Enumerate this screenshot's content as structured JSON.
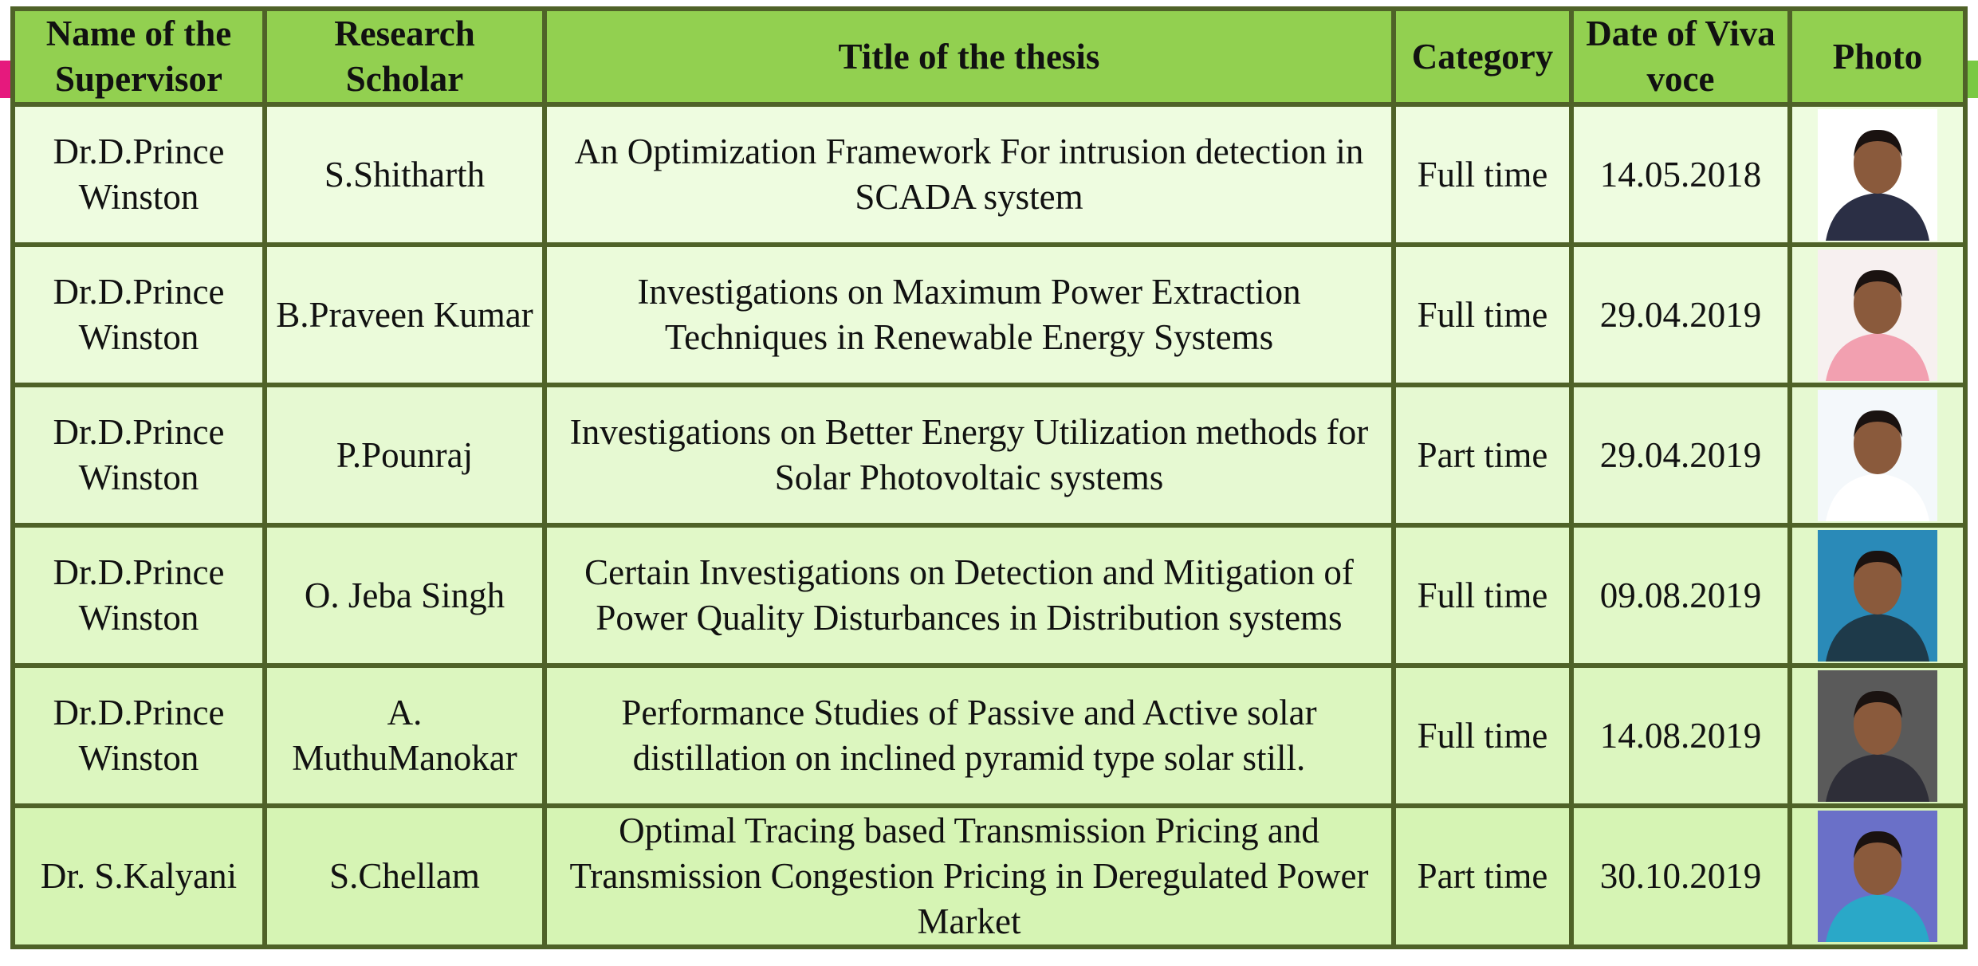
{
  "table": {
    "header": [
      "Name of the Supervisor",
      "Research Scholar",
      "Title of the thesis",
      "Category",
      "Date of Viva voce",
      "Photo"
    ],
    "rows": [
      [
        "Dr.D.Prince Winston",
        "S.Shitharth",
        "An Optimization Framework For intrusion detection in SCADA system",
        "Full time",
        "14.05.2018"
      ],
      [
        "Dr.D.Prince Winston",
        "B.Praveen Kumar",
        "Investigations on Maximum Power Extraction Techniques in Renewable Energy Systems",
        "Full time",
        "29.04.2019"
      ],
      [
        "Dr.D.Prince Winston",
        "P.Pounraj",
        "Investigations on Better Energy Utilization methods for Solar Photovoltaic systems",
        "Part time",
        "29.04.2019"
      ],
      [
        "Dr.D.Prince Winston",
        "O. Jeba Singh",
        "Certain Investigations on Detection and Mitigation of Power Quality Disturbances in Distribution systems",
        "Full time",
        "09.08.2019"
      ],
      [
        "Dr.D.Prince Winston",
        "A. MuthuManokar",
        "Performance Studies of Passive and Active solar distillation on inclined pyramid type solar still.",
        "Full time",
        "14.08.2019"
      ],
      [
        "Dr. S.Kalyani",
        "S.Chellam",
        "Optimal Tracing based Transmission Pricing and Transmission Congestion Pricing in Deregulated Power Market",
        "Part time",
        "30.10.2019"
      ]
    ]
  }
}
